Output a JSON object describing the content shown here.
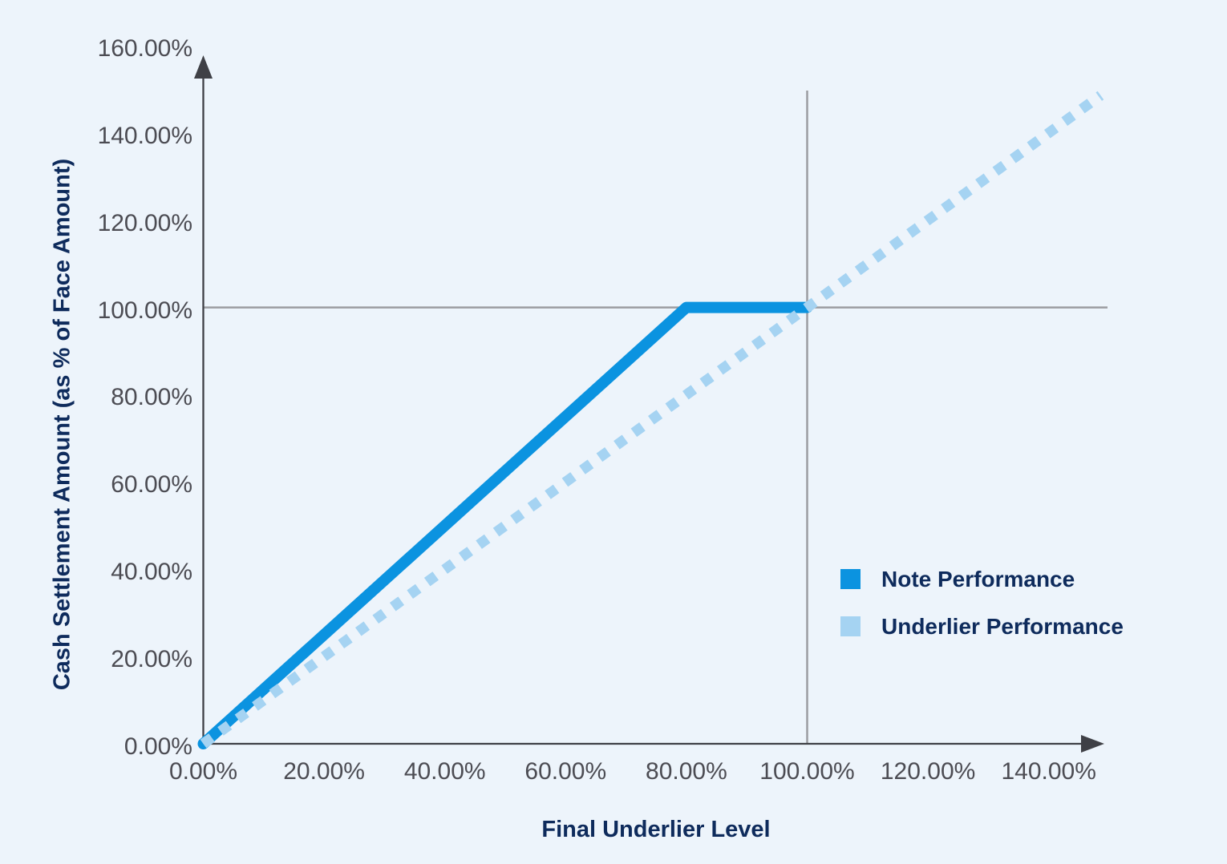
{
  "chart_data": {
    "type": "line",
    "title": "",
    "xlabel": "Final Underlier Level",
    "ylabel": "Cash Settlement Amount (as % of Face Amount)",
    "x_ticks": [
      "0.00%",
      "20.00%",
      "40.00%",
      "60.00%",
      "80.00%",
      "100.00%",
      "120.00%",
      "140.00%"
    ],
    "x_tick_values": [
      0,
      20,
      40,
      60,
      80,
      100,
      120,
      140
    ],
    "y_ticks": [
      "0.00%",
      "20.00%",
      "40.00%",
      "60.00%",
      "80.00%",
      "100.00%",
      "120.00%",
      "140.00%",
      "160.00%"
    ],
    "y_tick_values": [
      0,
      20,
      40,
      60,
      80,
      100,
      120,
      140,
      160
    ],
    "xlim": [
      0,
      150
    ],
    "ylim": [
      0,
      160
    ],
    "grid": {
      "horizontal_at_y": 100,
      "vertical_at_x": 100
    },
    "series": [
      {
        "name": "Note Performance",
        "style": "solid",
        "color": "#0b93e0",
        "points": [
          [
            0,
            0
          ],
          [
            80,
            100
          ],
          [
            100,
            100
          ]
        ]
      },
      {
        "name": "Underlier Performance",
        "style": "dotted",
        "color": "#a5d3f2",
        "points": [
          [
            0,
            0
          ],
          [
            148.6,
            148.6
          ]
        ]
      }
    ],
    "legend": {
      "position": "right-middle",
      "entries": [
        {
          "label": "Note Performance",
          "color": "#0b93e0"
        },
        {
          "label": "Underlier Performance",
          "color": "#a5d3f2"
        }
      ]
    },
    "colors": {
      "background": "#edf4fb",
      "axis": "#3f4046",
      "grid": "#9b9ca1",
      "tick_text": "#4c4c53",
      "title_text": "#0e2b5c"
    }
  }
}
